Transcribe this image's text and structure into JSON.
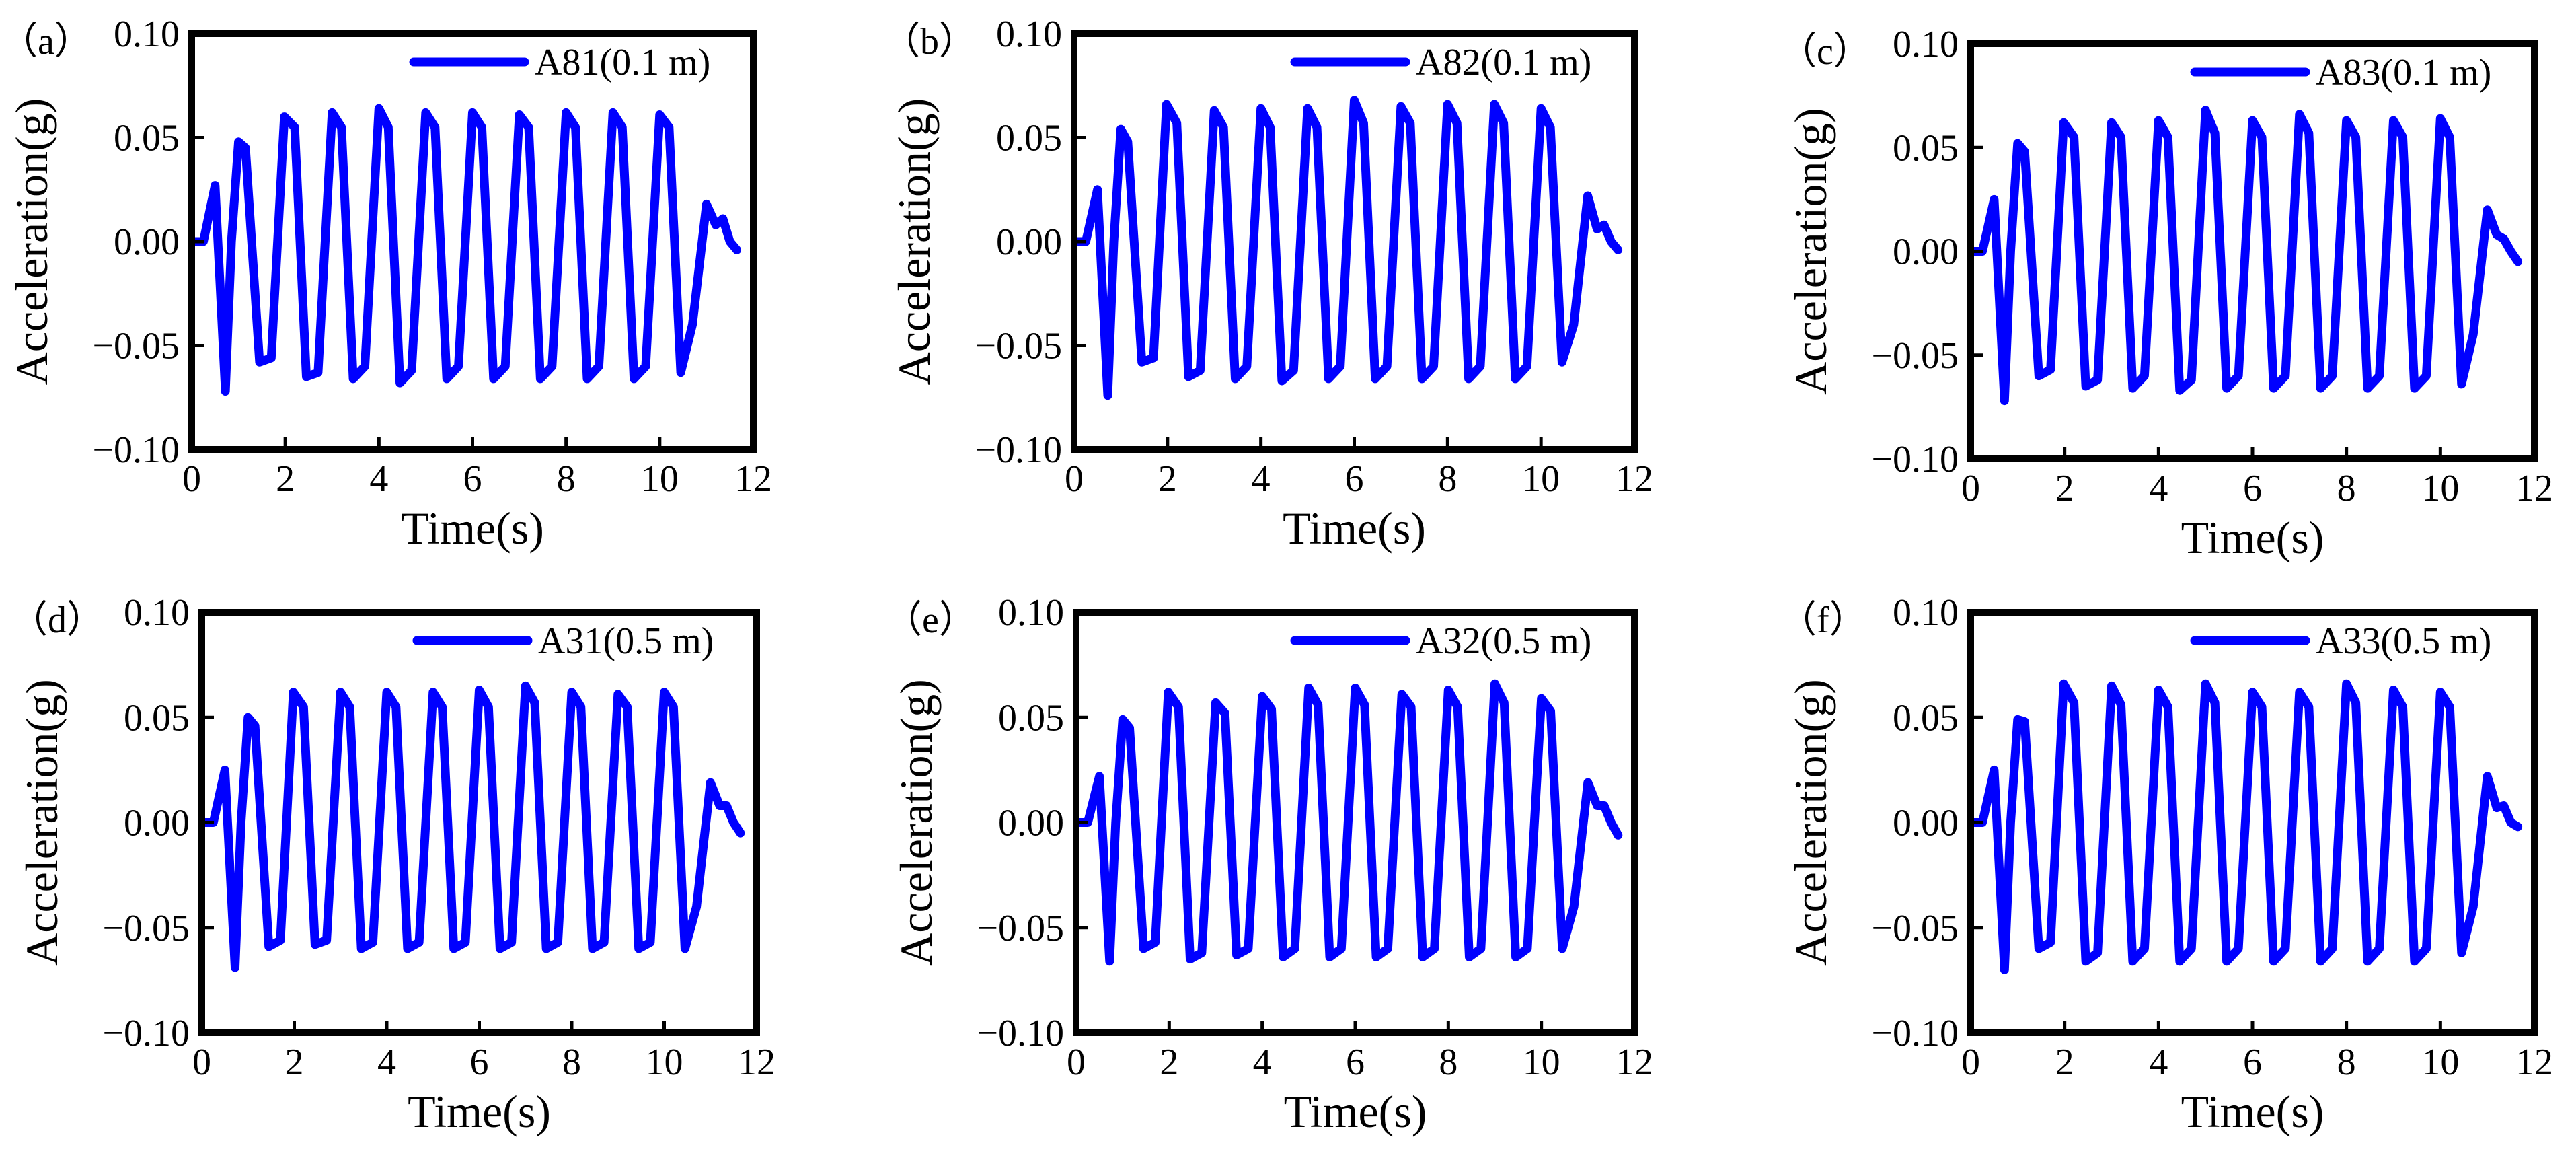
{
  "chart_data": [
    {
      "type": "line",
      "panel_label": "（a）",
      "xlabel": "Time(s)",
      "ylabel": "Acceleration(g)",
      "xlim": [
        0,
        12
      ],
      "ylim": [
        -0.1,
        0.1
      ],
      "x_ticks": [
        "0",
        "2",
        "4",
        "6",
        "8",
        "10",
        "12"
      ],
      "y_ticks": [
        "0.10",
        "0.05",
        "0.00",
        "−0.05",
        "−0.10"
      ],
      "legend_position": "top-right",
      "series": [
        {
          "name": "A81(0.1 m)",
          "color": "#0000ff",
          "x": [
            0,
            0.25,
            0.5,
            0.72,
            0.85,
            1.0,
            1.15,
            1.45,
            1.7,
            1.98,
            2.2,
            2.45,
            2.7,
            3.0,
            3.2,
            3.45,
            3.7,
            4.0,
            4.2,
            4.45,
            4.7,
            5.0,
            5.2,
            5.45,
            5.7,
            6.0,
            6.2,
            6.45,
            6.7,
            7.0,
            7.2,
            7.45,
            7.7,
            8.0,
            8.2,
            8.45,
            8.7,
            9.0,
            9.2,
            9.45,
            9.7,
            10.0,
            10.2,
            10.45,
            10.7,
            11.0,
            11.2,
            11.35,
            11.5,
            11.65
          ],
          "values": [
            0.0,
            0.0,
            0.027,
            -0.072,
            0.0,
            0.048,
            0.045,
            -0.058,
            -0.056,
            0.06,
            0.055,
            -0.065,
            -0.063,
            0.062,
            0.055,
            -0.066,
            -0.06,
            0.064,
            0.055,
            -0.068,
            -0.062,
            0.062,
            0.055,
            -0.066,
            -0.06,
            0.062,
            0.055,
            -0.066,
            -0.06,
            0.061,
            0.055,
            -0.066,
            -0.06,
            0.062,
            0.055,
            -0.066,
            -0.06,
            0.062,
            0.055,
            -0.066,
            -0.06,
            0.061,
            0.055,
            -0.063,
            -0.04,
            0.018,
            0.008,
            0.011,
            0.0,
            -0.004
          ]
        }
      ]
    },
    {
      "type": "line",
      "panel_label": "（b）",
      "xlabel": "Time(s)",
      "ylabel": "Acceleration(g)",
      "xlim": [
        0,
        12
      ],
      "ylim": [
        -0.1,
        0.1
      ],
      "x_ticks": [
        "0",
        "2",
        "4",
        "6",
        "8",
        "10",
        "12"
      ],
      "y_ticks": [
        "0.10",
        "0.05",
        "0.00",
        "−0.05",
        "−0.10"
      ],
      "legend_position": "top-right",
      "series": [
        {
          "name": "A82(0.1 m)",
          "color": "#0000ff",
          "x": [
            0,
            0.25,
            0.5,
            0.72,
            0.85,
            1.0,
            1.15,
            1.45,
            1.7,
            1.98,
            2.2,
            2.45,
            2.7,
            3.0,
            3.2,
            3.45,
            3.7,
            4.0,
            4.2,
            4.45,
            4.7,
            5.0,
            5.2,
            5.45,
            5.7,
            6.0,
            6.2,
            6.45,
            6.7,
            7.0,
            7.2,
            7.45,
            7.7,
            8.0,
            8.2,
            8.45,
            8.7,
            9.0,
            9.2,
            9.45,
            9.7,
            10.0,
            10.2,
            10.45,
            10.7,
            11.0,
            11.2,
            11.35,
            11.5,
            11.65
          ],
          "values": [
            0.0,
            0.0,
            0.025,
            -0.074,
            0.0,
            0.054,
            0.048,
            -0.058,
            -0.056,
            0.066,
            0.057,
            -0.065,
            -0.062,
            0.063,
            0.055,
            -0.066,
            -0.06,
            0.064,
            0.055,
            -0.067,
            -0.062,
            0.064,
            0.055,
            -0.066,
            -0.06,
            0.068,
            0.057,
            -0.066,
            -0.06,
            0.065,
            0.057,
            -0.066,
            -0.06,
            0.066,
            0.057,
            -0.066,
            -0.06,
            0.066,
            0.057,
            -0.066,
            -0.06,
            0.064,
            0.055,
            -0.058,
            -0.04,
            0.022,
            0.006,
            0.008,
            0.0,
            -0.004
          ]
        }
      ]
    },
    {
      "type": "line",
      "panel_label": "（c）",
      "xlabel": "Time(s)",
      "ylabel": "Acceleration(g)",
      "xlim": [
        0,
        12
      ],
      "ylim": [
        -0.1,
        0.1
      ],
      "x_ticks": [
        "0",
        "2",
        "4",
        "6",
        "8",
        "10",
        "12"
      ],
      "y_ticks": [
        "0.10",
        "0.05",
        "0.00",
        "−0.05",
        "−0.10"
      ],
      "legend_position": "top-right",
      "series": [
        {
          "name": "A83(0.1 m)",
          "color": "#0000ff",
          "x": [
            0,
            0.25,
            0.5,
            0.72,
            0.85,
            1.0,
            1.15,
            1.45,
            1.7,
            1.98,
            2.2,
            2.45,
            2.7,
            3.0,
            3.2,
            3.45,
            3.7,
            4.0,
            4.2,
            4.45,
            4.7,
            5.0,
            5.2,
            5.45,
            5.7,
            6.0,
            6.2,
            6.45,
            6.7,
            7.0,
            7.2,
            7.45,
            7.7,
            8.0,
            8.2,
            8.45,
            8.7,
            9.0,
            9.2,
            9.45,
            9.7,
            10.0,
            10.2,
            10.45,
            10.7,
            11.0,
            11.2,
            11.35,
            11.5,
            11.65
          ],
          "values": [
            0.0,
            0.0,
            0.025,
            -0.072,
            0.0,
            0.052,
            0.048,
            -0.06,
            -0.057,
            0.062,
            0.055,
            -0.065,
            -0.062,
            0.062,
            0.055,
            -0.066,
            -0.06,
            0.063,
            0.055,
            -0.067,
            -0.062,
            0.068,
            0.057,
            -0.066,
            -0.06,
            0.063,
            0.055,
            -0.066,
            -0.06,
            0.066,
            0.057,
            -0.066,
            -0.06,
            0.063,
            0.055,
            -0.066,
            -0.06,
            0.063,
            0.055,
            -0.066,
            -0.06,
            0.064,
            0.055,
            -0.064,
            -0.04,
            0.02,
            0.008,
            0.006,
            0.0,
            -0.005
          ]
        }
      ]
    },
    {
      "type": "line",
      "panel_label": "（d）",
      "xlabel": "Time(s)",
      "ylabel": "Acceleration(g)",
      "xlim": [
        0,
        12
      ],
      "ylim": [
        -0.1,
        0.1
      ],
      "x_ticks": [
        "0",
        "2",
        "4",
        "6",
        "8",
        "10",
        "12"
      ],
      "y_ticks": [
        "0.10",
        "0.05",
        "0.00",
        "−0.05",
        "−0.10"
      ],
      "legend_position": "top-right",
      "series": [
        {
          "name": "A31(0.5 m)",
          "color": "#0000ff",
          "x": [
            0,
            0.25,
            0.5,
            0.72,
            0.85,
            1.0,
            1.15,
            1.45,
            1.7,
            1.98,
            2.2,
            2.45,
            2.7,
            3.0,
            3.2,
            3.45,
            3.7,
            4.0,
            4.2,
            4.45,
            4.7,
            5.0,
            5.2,
            5.45,
            5.7,
            6.0,
            6.2,
            6.45,
            6.7,
            7.0,
            7.2,
            7.45,
            7.7,
            8.0,
            8.2,
            8.45,
            8.7,
            9.0,
            9.2,
            9.45,
            9.7,
            10.0,
            10.2,
            10.45,
            10.7,
            11.0,
            11.2,
            11.35,
            11.5,
            11.65
          ],
          "values": [
            0.0,
            0.0,
            0.025,
            -0.069,
            0.0,
            0.05,
            0.046,
            -0.059,
            -0.056,
            0.062,
            0.055,
            -0.058,
            -0.056,
            0.062,
            0.055,
            -0.06,
            -0.057,
            0.062,
            0.055,
            -0.06,
            -0.057,
            0.062,
            0.055,
            -0.06,
            -0.057,
            0.063,
            0.055,
            -0.06,
            -0.057,
            0.065,
            0.057,
            -0.06,
            -0.057,
            0.062,
            0.055,
            -0.06,
            -0.057,
            0.061,
            0.055,
            -0.06,
            -0.057,
            0.062,
            0.055,
            -0.06,
            -0.04,
            0.019,
            0.008,
            0.008,
            0.0,
            -0.005
          ]
        }
      ]
    },
    {
      "type": "line",
      "panel_label": "（e）",
      "xlabel": "Time(s)",
      "ylabel": "Acceleration(g)",
      "xlim": [
        0,
        12
      ],
      "ylim": [
        -0.1,
        0.1
      ],
      "x_ticks": [
        "0",
        "2",
        "4",
        "6",
        "8",
        "10",
        "12"
      ],
      "y_ticks": [
        "0.10",
        "0.05",
        "0.00",
        "−0.05",
        "−0.10"
      ],
      "legend_position": "top-right",
      "series": [
        {
          "name": "A32(0.5 m)",
          "color": "#0000ff",
          "x": [
            0,
            0.25,
            0.5,
            0.72,
            0.85,
            1.0,
            1.15,
            1.45,
            1.7,
            1.98,
            2.2,
            2.45,
            2.7,
            3.0,
            3.2,
            3.45,
            3.7,
            4.0,
            4.2,
            4.45,
            4.7,
            5.0,
            5.2,
            5.45,
            5.7,
            6.0,
            6.2,
            6.45,
            6.7,
            7.0,
            7.2,
            7.45,
            7.7,
            8.0,
            8.2,
            8.45,
            8.7,
            9.0,
            9.2,
            9.45,
            9.7,
            10.0,
            10.2,
            10.45,
            10.7,
            11.0,
            11.2,
            11.35,
            11.5,
            11.65
          ],
          "values": [
            0.0,
            0.0,
            0.022,
            -0.066,
            0.0,
            0.049,
            0.045,
            -0.06,
            -0.057,
            0.062,
            0.055,
            -0.065,
            -0.062,
            0.057,
            0.052,
            -0.063,
            -0.06,
            0.06,
            0.054,
            -0.064,
            -0.06,
            0.064,
            0.056,
            -0.064,
            -0.06,
            0.064,
            0.056,
            -0.064,
            -0.06,
            0.061,
            0.055,
            -0.064,
            -0.06,
            0.063,
            0.055,
            -0.064,
            -0.06,
            0.066,
            0.057,
            -0.064,
            -0.06,
            0.059,
            0.053,
            -0.06,
            -0.04,
            0.019,
            0.008,
            0.008,
            0.0,
            -0.006
          ]
        }
      ]
    },
    {
      "type": "line",
      "panel_label": "（f）",
      "xlabel": "Time(s)",
      "ylabel": "Acceleration(g)",
      "xlim": [
        0,
        12
      ],
      "ylim": [
        -0.1,
        0.1
      ],
      "x_ticks": [
        "0",
        "2",
        "4",
        "6",
        "8",
        "10",
        "12"
      ],
      "y_ticks": [
        "0.10",
        "0.05",
        "0.00",
        "−0.05",
        "−0.10"
      ],
      "legend_position": "top-right",
      "series": [
        {
          "name": "A33(0.5 m)",
          "color": "#0000ff",
          "x": [
            0,
            0.25,
            0.5,
            0.72,
            0.85,
            1.0,
            1.15,
            1.45,
            1.7,
            1.98,
            2.2,
            2.45,
            2.7,
            3.0,
            3.2,
            3.45,
            3.7,
            4.0,
            4.2,
            4.45,
            4.7,
            5.0,
            5.2,
            5.45,
            5.7,
            6.0,
            6.2,
            6.45,
            6.7,
            7.0,
            7.2,
            7.45,
            7.7,
            8.0,
            8.2,
            8.45,
            8.7,
            9.0,
            9.2,
            9.45,
            9.7,
            10.0,
            10.2,
            10.45,
            10.7,
            11.0,
            11.2,
            11.35,
            11.5,
            11.65
          ],
          "values": [
            0.0,
            0.0,
            0.025,
            -0.07,
            0.0,
            0.049,
            0.048,
            -0.06,
            -0.057,
            0.066,
            0.057,
            -0.066,
            -0.062,
            0.065,
            0.056,
            -0.066,
            -0.06,
            0.063,
            0.055,
            -0.066,
            -0.06,
            0.066,
            0.057,
            -0.066,
            -0.06,
            0.062,
            0.055,
            -0.066,
            -0.06,
            0.062,
            0.055,
            -0.066,
            -0.06,
            0.066,
            0.057,
            -0.066,
            -0.06,
            0.063,
            0.055,
            -0.066,
            -0.06,
            0.062,
            0.055,
            -0.062,
            -0.04,
            0.022,
            0.007,
            0.008,
            0.0,
            -0.002
          ]
        }
      ]
    }
  ]
}
